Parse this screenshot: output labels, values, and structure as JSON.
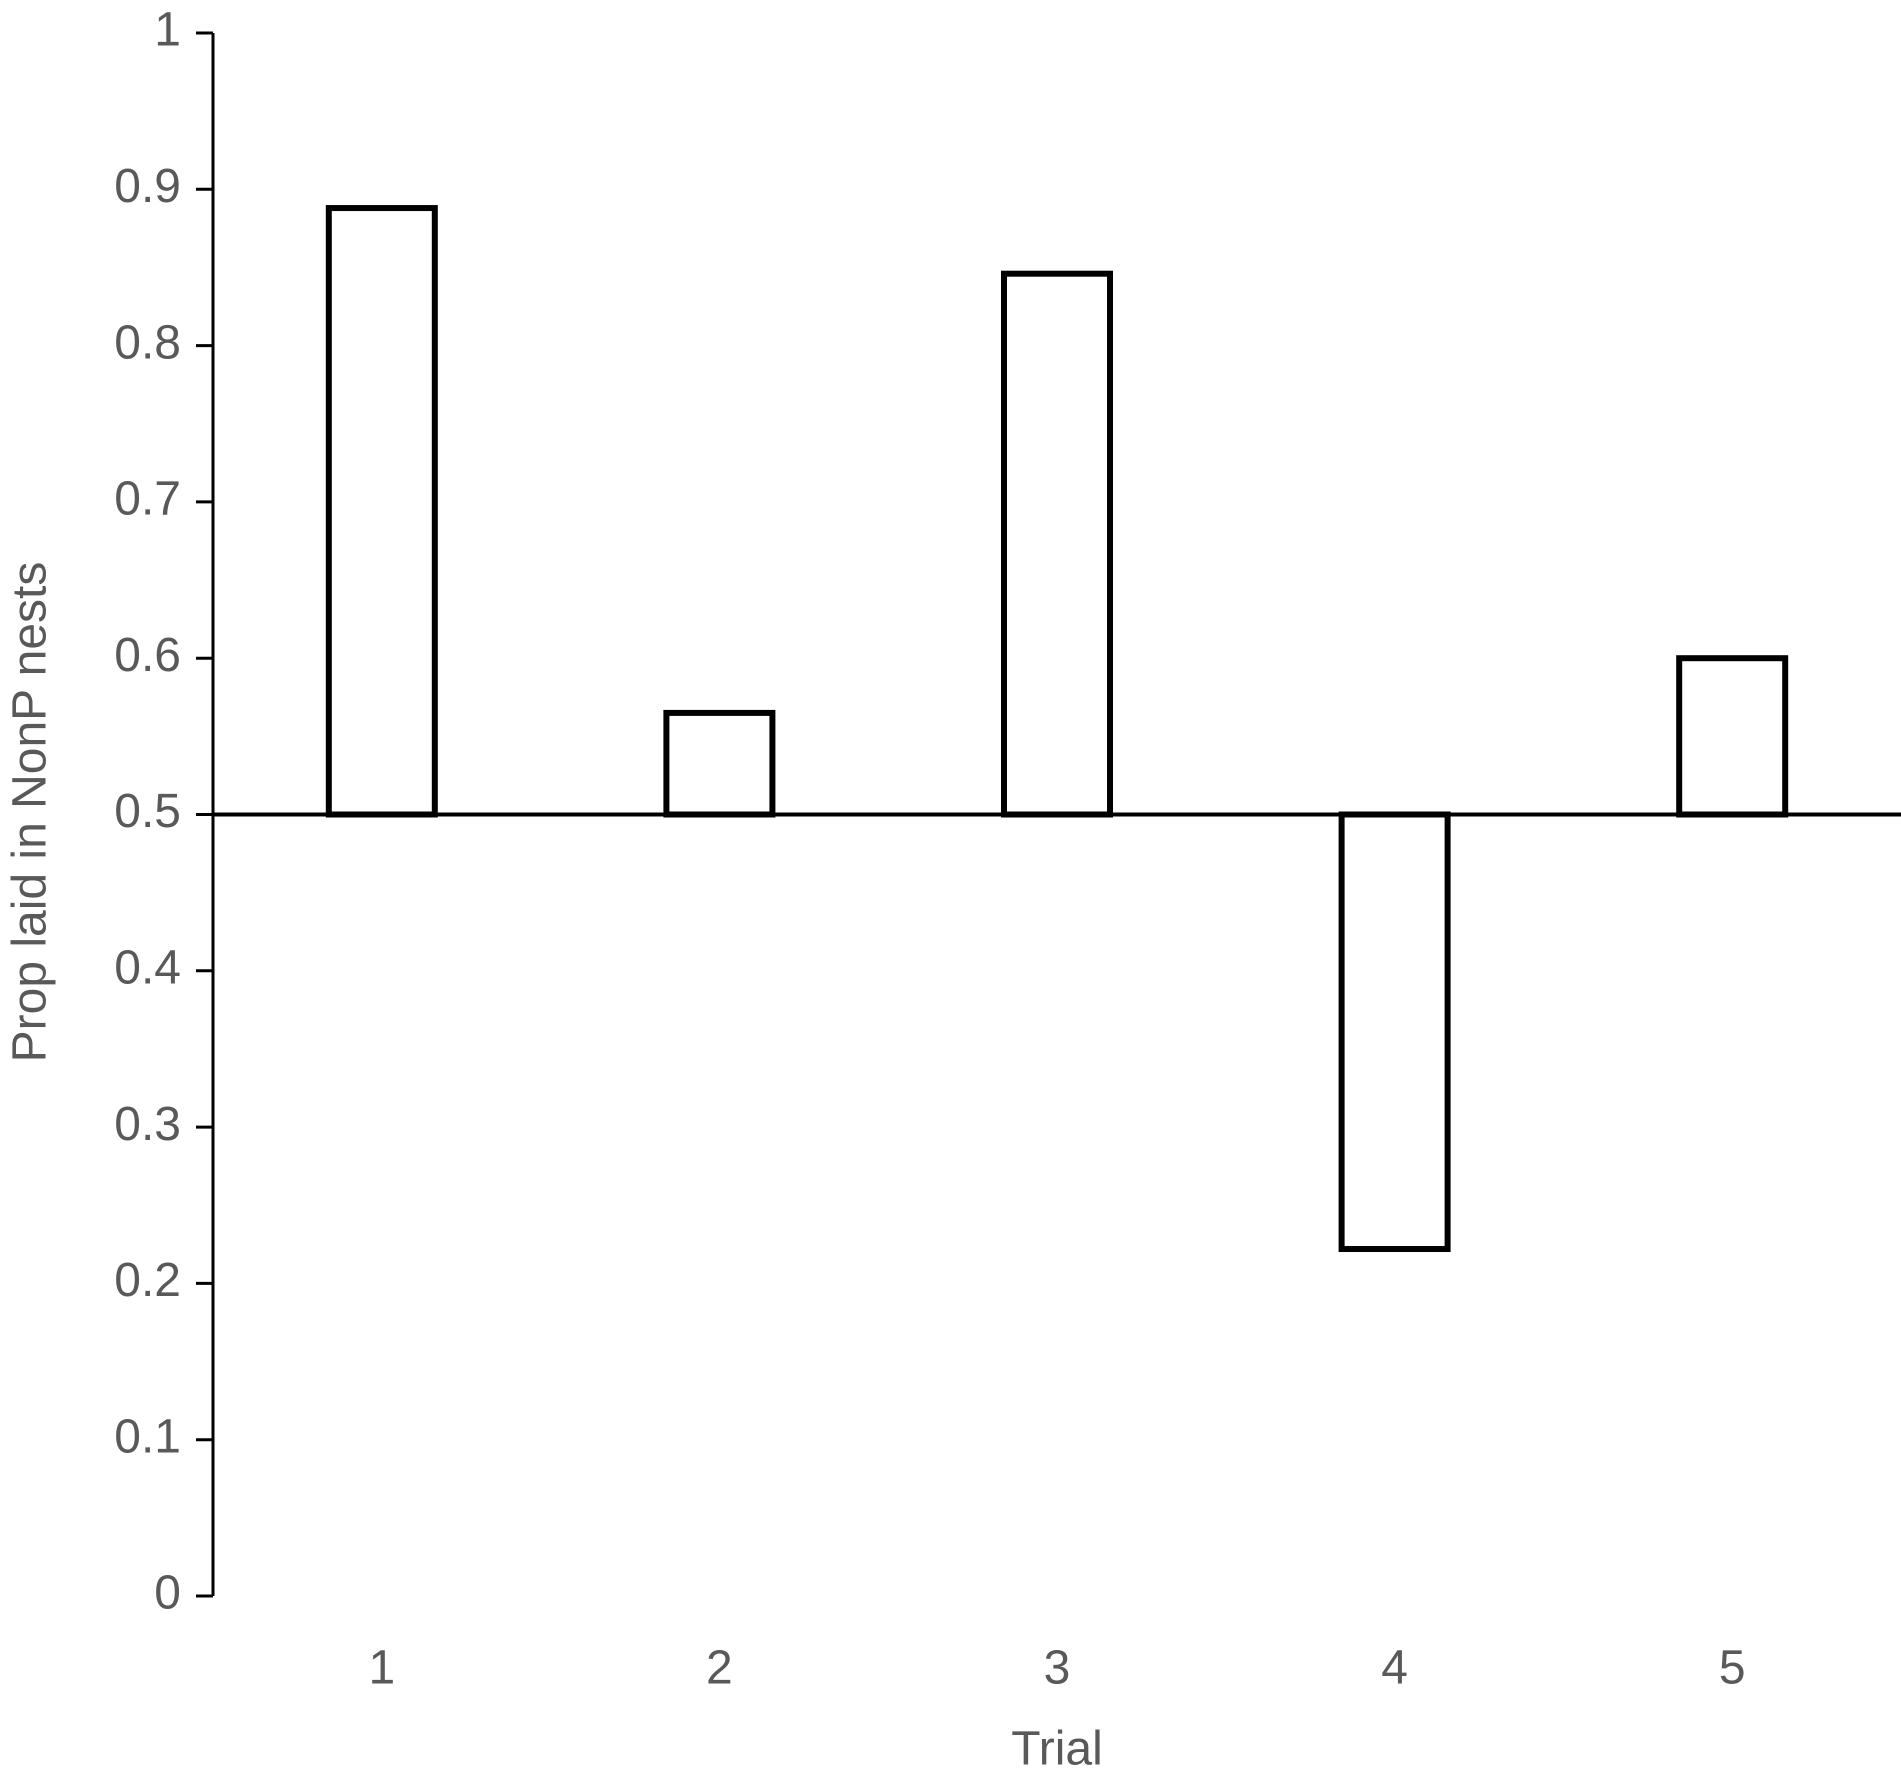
{
  "chart_data": {
    "type": "bar",
    "x_label": "Trial",
    "y_label": "Prop laid in NonP nests",
    "categories": [
      "1",
      "2",
      "3",
      "4",
      "5"
    ],
    "values": [
      0.888,
      0.565,
      0.846,
      0.222,
      0.6
    ],
    "bar_base": 0.5,
    "color": "#ffffff",
    "edge_color": "#000000",
    "ylim": [
      0,
      1
    ],
    "yticks": [
      0,
      0.1,
      0.2,
      0.3,
      0.4,
      0.5,
      0.6,
      0.7,
      0.8,
      0.9,
      1
    ],
    "grid": false
  }
}
